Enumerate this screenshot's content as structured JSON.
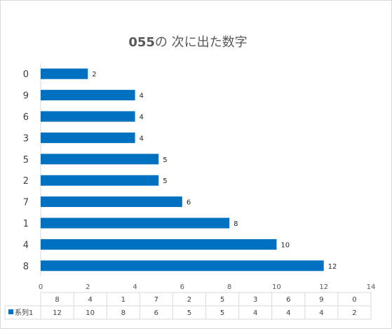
{
  "chart_data": {
    "type": "bar",
    "orientation": "horizontal",
    "title_bold": "055",
    "title_rest": "の 次に出た数字",
    "categories": [
      "8",
      "4",
      "1",
      "7",
      "2",
      "5",
      "3",
      "6",
      "9",
      "0"
    ],
    "series": [
      {
        "name": "系列1",
        "values": [
          12,
          10,
          8,
          6,
          5,
          5,
          4,
          4,
          4,
          2
        ],
        "color": "#0070C0"
      }
    ],
    "xlim": [
      0,
      14
    ],
    "x_ticks": [
      "0",
      "2",
      "4",
      "6",
      "8",
      "10",
      "12",
      "14"
    ],
    "data_labels": true,
    "data_table": true,
    "grid": false,
    "legend": "in-data-table"
  }
}
